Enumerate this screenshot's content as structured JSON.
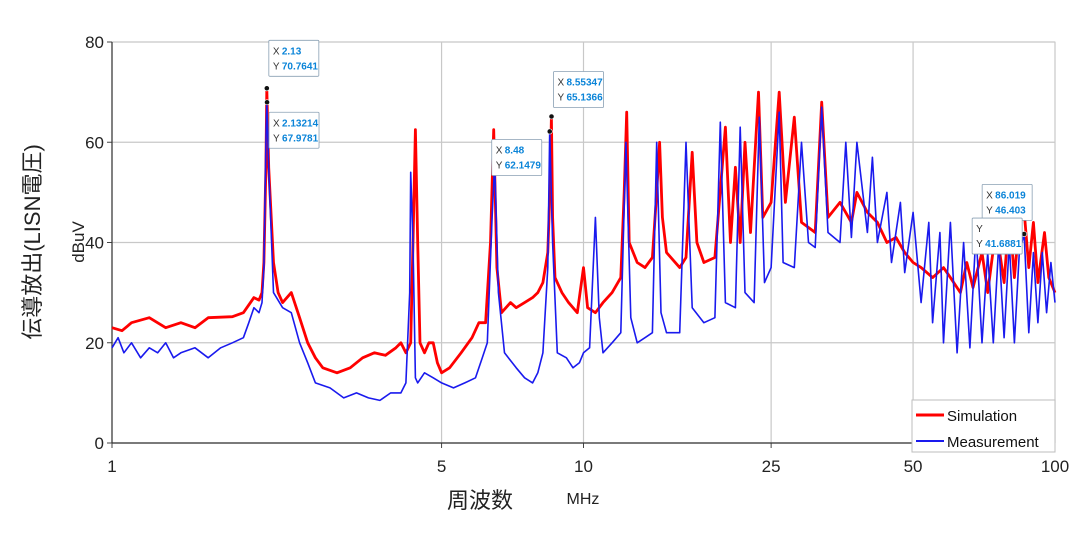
{
  "chart_data": {
    "type": "line",
    "xscale": "log",
    "xlim": [
      1,
      100
    ],
    "ylim": [
      0,
      80
    ],
    "grid": true,
    "ylabel": "伝導放出(LISN電圧)",
    "yunit": "dBuV",
    "xlabel": "周波数",
    "xunit": "MHz",
    "x_ticks": [
      1,
      5,
      10,
      25,
      50,
      100
    ],
    "y_ticks": [
      0,
      20,
      40,
      60,
      80
    ],
    "legend": {
      "placement": "bottom-right",
      "entries": [
        "Simulation",
        "Measurement"
      ]
    },
    "series": [
      {
        "name": "Simulation",
        "color": "#ff0000",
        "points": [
          [
            1,
            23
          ],
          [
            1.05,
            22.4
          ],
          [
            1.1,
            24
          ],
          [
            1.2,
            25
          ],
          [
            1.3,
            23
          ],
          [
            1.4,
            24
          ],
          [
            1.5,
            23
          ],
          [
            1.6,
            25
          ],
          [
            1.8,
            25.2
          ],
          [
            1.9,
            26
          ],
          [
            2.0,
            29
          ],
          [
            2.05,
            28.5
          ],
          [
            2.08,
            30
          ],
          [
            2.1,
            36
          ],
          [
            2.12,
            55
          ],
          [
            2.13,
            70.76
          ],
          [
            2.15,
            55
          ],
          [
            2.2,
            36
          ],
          [
            2.25,
            30
          ],
          [
            2.3,
            28
          ],
          [
            2.4,
            30
          ],
          [
            2.5,
            25
          ],
          [
            2.6,
            20
          ],
          [
            2.7,
            17
          ],
          [
            2.8,
            15
          ],
          [
            3.0,
            14
          ],
          [
            3.2,
            15
          ],
          [
            3.4,
            17
          ],
          [
            3.6,
            18
          ],
          [
            3.8,
            17.5
          ],
          [
            4.0,
            19
          ],
          [
            4.1,
            20
          ],
          [
            4.2,
            18
          ],
          [
            4.3,
            20
          ],
          [
            4.35,
            40
          ],
          [
            4.4,
            62.5
          ],
          [
            4.45,
            40
          ],
          [
            4.5,
            20
          ],
          [
            4.6,
            18
          ],
          [
            4.7,
            20
          ],
          [
            4.8,
            20
          ],
          [
            4.9,
            16
          ],
          [
            5.0,
            14
          ],
          [
            5.2,
            15
          ],
          [
            5.5,
            18
          ],
          [
            5.8,
            21
          ],
          [
            6.0,
            24
          ],
          [
            6.2,
            24
          ],
          [
            6.35,
            40
          ],
          [
            6.45,
            62.5
          ],
          [
            6.55,
            35
          ],
          [
            6.7,
            26
          ],
          [
            7.0,
            28
          ],
          [
            7.2,
            27
          ],
          [
            7.5,
            28
          ],
          [
            7.8,
            29
          ],
          [
            8.0,
            30
          ],
          [
            8.2,
            32
          ],
          [
            8.4,
            38
          ],
          [
            8.5,
            52
          ],
          [
            8.55,
            65.14
          ],
          [
            8.6,
            45
          ],
          [
            8.7,
            33
          ],
          [
            9.0,
            30
          ],
          [
            9.3,
            28
          ],
          [
            9.7,
            26
          ],
          [
            10.0,
            35
          ],
          [
            10.2,
            27
          ],
          [
            10.6,
            26
          ],
          [
            11.0,
            28
          ],
          [
            11.5,
            30
          ],
          [
            12.0,
            33
          ],
          [
            12.2,
            50
          ],
          [
            12.35,
            66
          ],
          [
            12.5,
            40
          ],
          [
            13.0,
            36
          ],
          [
            13.5,
            35
          ],
          [
            14.0,
            37
          ],
          [
            14.3,
            50
          ],
          [
            14.5,
            60
          ],
          [
            14.7,
            45
          ],
          [
            15.0,
            38
          ],
          [
            16.0,
            35
          ],
          [
            16.5,
            37
          ],
          [
            17.0,
            58
          ],
          [
            17.4,
            40
          ],
          [
            18.0,
            36
          ],
          [
            19.0,
            37
          ],
          [
            20.0,
            63
          ],
          [
            20.5,
            40
          ],
          [
            21.0,
            55
          ],
          [
            21.5,
            40
          ],
          [
            22.0,
            60
          ],
          [
            22.6,
            42
          ],
          [
            23.5,
            70
          ],
          [
            24.0,
            45
          ],
          [
            25.0,
            48
          ],
          [
            26.0,
            70
          ],
          [
            26.8,
            48
          ],
          [
            28.0,
            65
          ],
          [
            29.0,
            44
          ],
          [
            30.0,
            43
          ],
          [
            31.0,
            42
          ],
          [
            32.0,
            68
          ],
          [
            33.0,
            45
          ],
          [
            35.0,
            48
          ],
          [
            37.0,
            44
          ],
          [
            38.0,
            50
          ],
          [
            40.0,
            46
          ],
          [
            42.0,
            44
          ],
          [
            44.0,
            40
          ],
          [
            46.0,
            41
          ],
          [
            48.0,
            38
          ],
          [
            50.0,
            36
          ],
          [
            52.0,
            35
          ],
          [
            55.0,
            33
          ],
          [
            58.0,
            35
          ],
          [
            60.0,
            33
          ],
          [
            63.0,
            30
          ],
          [
            65.0,
            36
          ],
          [
            67.0,
            31
          ],
          [
            70.0,
            38
          ],
          [
            72.0,
            30
          ],
          [
            75.0,
            43
          ],
          [
            78.0,
            32
          ],
          [
            80.0,
            46
          ],
          [
            82.0,
            33
          ],
          [
            84.0,
            44
          ],
          [
            86.0,
            46.4
          ],
          [
            88.0,
            35
          ],
          [
            90.0,
            44
          ],
          [
            92.0,
            32
          ],
          [
            95.0,
            42
          ],
          [
            97.0,
            33
          ],
          [
            100.0,
            30
          ]
        ]
      },
      {
        "name": "Measurement",
        "color": "#1a1aee",
        "points": [
          [
            1,
            19
          ],
          [
            1.03,
            21
          ],
          [
            1.06,
            18
          ],
          [
            1.1,
            20
          ],
          [
            1.15,
            17
          ],
          [
            1.2,
            19
          ],
          [
            1.25,
            18
          ],
          [
            1.3,
            20
          ],
          [
            1.35,
            17
          ],
          [
            1.4,
            18
          ],
          [
            1.5,
            19
          ],
          [
            1.6,
            17
          ],
          [
            1.7,
            19
          ],
          [
            1.8,
            20
          ],
          [
            1.9,
            21
          ],
          [
            1.95,
            24
          ],
          [
            2.0,
            27
          ],
          [
            2.05,
            26
          ],
          [
            2.08,
            28
          ],
          [
            2.1,
            35
          ],
          [
            2.12,
            60
          ],
          [
            2.13,
            67.98
          ],
          [
            2.15,
            55
          ],
          [
            2.2,
            30
          ],
          [
            2.3,
            27
          ],
          [
            2.4,
            26
          ],
          [
            2.5,
            20
          ],
          [
            2.6,
            16
          ],
          [
            2.7,
            12
          ],
          [
            2.9,
            11
          ],
          [
            3.1,
            9
          ],
          [
            3.3,
            10
          ],
          [
            3.5,
            9
          ],
          [
            3.7,
            8.5
          ],
          [
            3.9,
            10
          ],
          [
            4.1,
            10
          ],
          [
            4.2,
            12
          ],
          [
            4.28,
            30
          ],
          [
            4.3,
            54
          ],
          [
            4.35,
            40
          ],
          [
            4.4,
            13
          ],
          [
            4.45,
            12
          ],
          [
            4.6,
            14
          ],
          [
            4.8,
            13
          ],
          [
            5.0,
            12
          ],
          [
            5.3,
            11
          ],
          [
            5.6,
            12
          ],
          [
            5.9,
            13
          ],
          [
            6.1,
            17
          ],
          [
            6.25,
            20
          ],
          [
            6.4,
            45
          ],
          [
            6.48,
            56
          ],
          [
            6.6,
            30
          ],
          [
            6.8,
            18
          ],
          [
            7.2,
            15
          ],
          [
            7.5,
            13
          ],
          [
            7.8,
            12
          ],
          [
            8.0,
            14
          ],
          [
            8.2,
            18
          ],
          [
            8.4,
            35
          ],
          [
            8.48,
            62.15
          ],
          [
            8.6,
            40
          ],
          [
            8.8,
            18
          ],
          [
            9.2,
            17
          ],
          [
            9.5,
            15
          ],
          [
            9.8,
            16
          ],
          [
            10.0,
            18
          ],
          [
            10.3,
            19
          ],
          [
            10.6,
            45
          ],
          [
            10.8,
            25
          ],
          [
            11.0,
            18
          ],
          [
            11.5,
            20
          ],
          [
            12.0,
            22
          ],
          [
            12.3,
            60
          ],
          [
            12.6,
            25
          ],
          [
            13.0,
            20
          ],
          [
            13.5,
            21
          ],
          [
            14.0,
            22
          ],
          [
            14.3,
            60
          ],
          [
            14.6,
            26
          ],
          [
            15.0,
            22
          ],
          [
            16.0,
            22
          ],
          [
            16.5,
            60
          ],
          [
            17.0,
            27
          ],
          [
            18.0,
            24
          ],
          [
            19.0,
            25
          ],
          [
            19.5,
            64
          ],
          [
            20.0,
            28
          ],
          [
            21.0,
            27
          ],
          [
            21.5,
            63
          ],
          [
            22.0,
            30
          ],
          [
            23.0,
            28
          ],
          [
            23.6,
            65
          ],
          [
            24.2,
            32
          ],
          [
            25.0,
            35
          ],
          [
            26.0,
            66
          ],
          [
            26.5,
            36
          ],
          [
            28.0,
            35
          ],
          [
            29.0,
            60
          ],
          [
            30.0,
            40
          ],
          [
            31.0,
            39
          ],
          [
            32.0,
            67
          ],
          [
            33.0,
            42
          ],
          [
            35.0,
            40
          ],
          [
            36.0,
            60
          ],
          [
            37.0,
            41
          ],
          [
            38.0,
            60
          ],
          [
            40.0,
            42
          ],
          [
            41.0,
            57
          ],
          [
            42.0,
            40
          ],
          [
            44.0,
            50
          ],
          [
            45.0,
            36
          ],
          [
            47.0,
            48
          ],
          [
            48.0,
            34
          ],
          [
            50.0,
            46
          ],
          [
            52.0,
            28
          ],
          [
            54.0,
            44
          ],
          [
            55.0,
            24
          ],
          [
            57.0,
            42
          ],
          [
            58.0,
            20
          ],
          [
            60.0,
            44
          ],
          [
            62.0,
            18
          ],
          [
            64.0,
            40
          ],
          [
            66.0,
            19
          ],
          [
            68.0,
            42
          ],
          [
            70.0,
            20
          ],
          [
            72.0,
            38
          ],
          [
            74.0,
            20
          ],
          [
            76.0,
            40
          ],
          [
            78.0,
            21
          ],
          [
            80.0,
            40
          ],
          [
            82.0,
            20
          ],
          [
            84.0,
            38
          ],
          [
            86.0,
            41.69
          ],
          [
            88.0,
            22
          ],
          [
            90.0,
            38
          ],
          [
            92.0,
            24
          ],
          [
            94.0,
            38
          ],
          [
            96.0,
            26
          ],
          [
            98.0,
            36
          ],
          [
            100.0,
            28
          ]
        ]
      }
    ],
    "datatips": [
      {
        "x_label": "X",
        "x_value": "2.13",
        "y_label": "Y",
        "y_value": "70.7641",
        "x": 2.13,
        "y": 70.7641,
        "series": "Simulation"
      },
      {
        "x_label": "X",
        "x_value": "2.13214",
        "y_label": "Y",
        "y_value": "67.9781",
        "x": 2.13214,
        "y": 67.9781,
        "series": "Measurement"
      },
      {
        "x_label": "X",
        "x_value": "8.55347",
        "y_label": "Y",
        "y_value": "65.1366",
        "x": 8.55347,
        "y": 65.1366,
        "series": "Simulation"
      },
      {
        "x_label": "X",
        "x_value": "8.48",
        "y_label": "Y",
        "y_value": "62.1479",
        "x": 8.48,
        "y": 62.1479,
        "series": "Measurement"
      },
      {
        "x_label": "X",
        "x_value": "86.019",
        "y_label": "Y",
        "y_value": "46.403",
        "x": 86.019,
        "y": 46.403,
        "series": "Simulation"
      },
      {
        "x_label": "Y",
        "x_value": "",
        "y_label": "Y",
        "y_value": "41.6881",
        "x": 86.019,
        "y": 41.6881,
        "series": "Measurement"
      }
    ]
  }
}
